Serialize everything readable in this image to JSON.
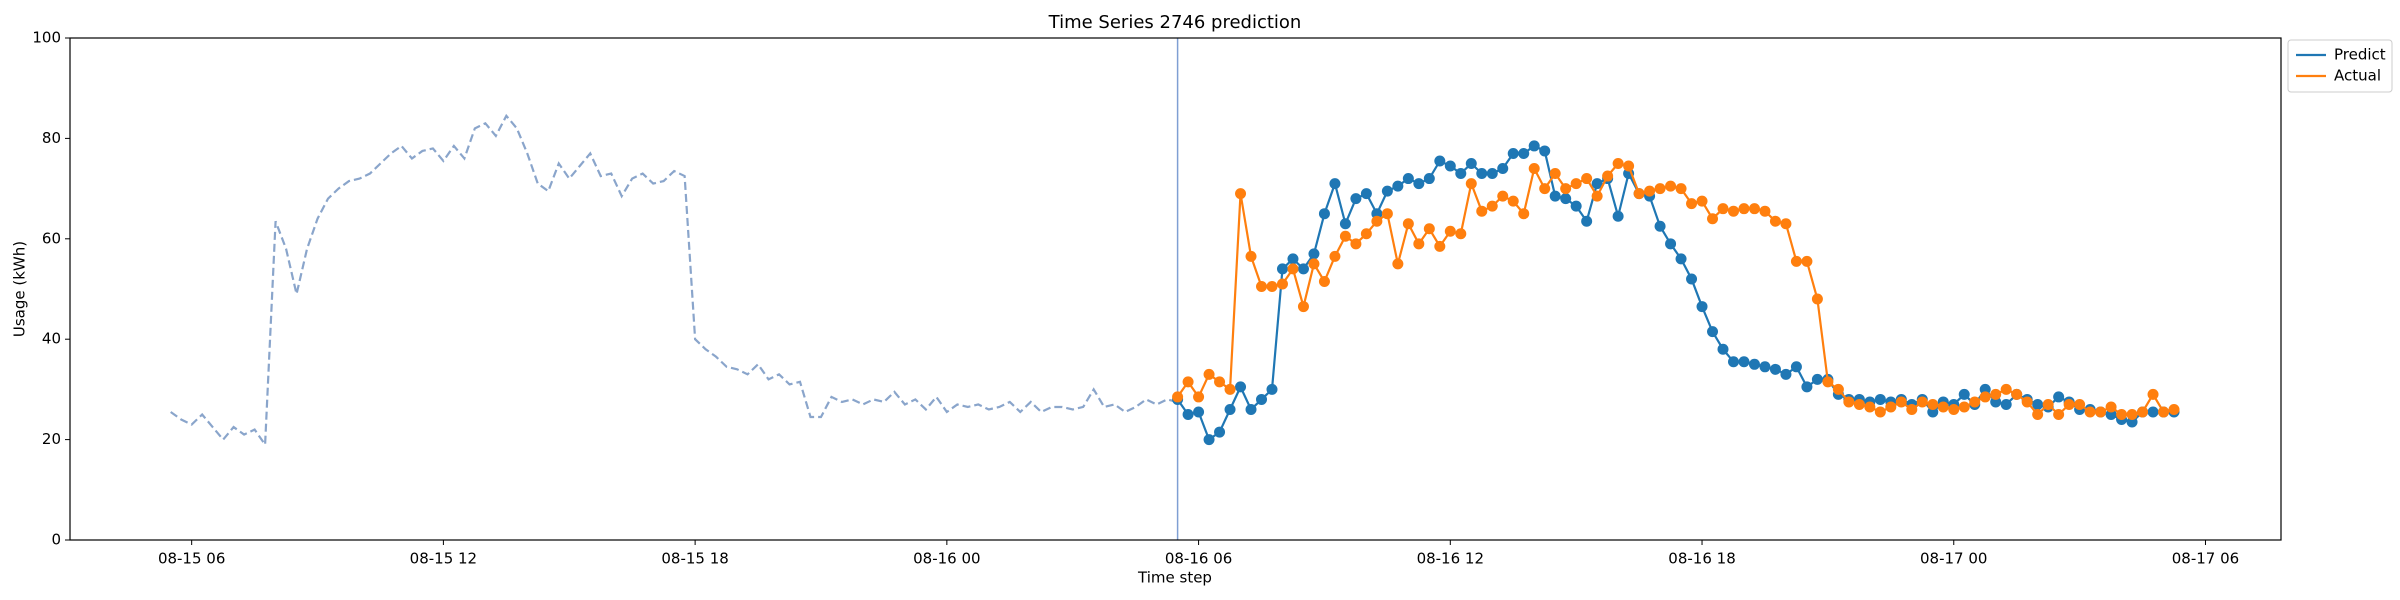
{
  "chart_data": {
    "type": "line",
    "title": "Time Series 2746 prediction",
    "x_label": "Time step",
    "y_label": "Usage (kWh)",
    "xlim": [
      3.1,
      55.8
    ],
    "ylim": [
      0,
      100
    ],
    "xticks": [
      {
        "value": 6,
        "label": "08-15 06"
      },
      {
        "value": 12,
        "label": "08-15 12"
      },
      {
        "value": 18,
        "label": "08-15 18"
      },
      {
        "value": 24,
        "label": "08-16 00"
      },
      {
        "value": 30,
        "label": "08-16 06"
      },
      {
        "value": 36,
        "label": "08-16 12"
      },
      {
        "value": 42,
        "label": "08-16 18"
      },
      {
        "value": 48,
        "label": "08-17 00"
      },
      {
        "value": 54,
        "label": "08-17 06"
      }
    ],
    "yticks": [
      0,
      20,
      40,
      60,
      80,
      100
    ],
    "vline": 29.5,
    "vline_color": "#7f9fd3",
    "legend": "outside upper right",
    "series": [
      {
        "color": "#8aa5cb",
        "linestyle": "dashed",
        "x": [
          5.5,
          5.75,
          6,
          6.25,
          6.5,
          6.75,
          7,
          7.25,
          7.5,
          7.75,
          8,
          8.25,
          8.5,
          8.75,
          9,
          9.25,
          9.5,
          9.75,
          10,
          10.25,
          10.5,
          10.75,
          11,
          11.25,
          11.5,
          11.75,
          12,
          12.25,
          12.5,
          12.75,
          13,
          13.25,
          13.5,
          13.75,
          14,
          14.25,
          14.5,
          14.75,
          15,
          15.25,
          15.5,
          15.75,
          16,
          16.25,
          16.5,
          16.75,
          17,
          17.25,
          17.5,
          17.75,
          18,
          18.25,
          18.5,
          18.75,
          19,
          19.25,
          19.5,
          19.75,
          20,
          20.25,
          20.5,
          20.75,
          21,
          21.25,
          21.5,
          21.75,
          22,
          22.25,
          22.5,
          22.75,
          23,
          23.25,
          23.5,
          23.75,
          24,
          24.25,
          24.5,
          24.75,
          25,
          25.25,
          25.5,
          25.75,
          26,
          26.25,
          26.5,
          26.75,
          27,
          27.25,
          27.5,
          27.75,
          28,
          28.25,
          28.5,
          28.75,
          29,
          29.25,
          29.5
        ],
        "values": [
          25.5,
          24,
          23,
          25,
          22.5,
          20,
          22.5,
          21,
          22,
          19,
          63.5,
          58,
          49,
          58,
          64,
          68,
          70,
          71.5,
          72,
          73,
          75,
          77,
          78.5,
          76,
          77.5,
          78,
          75.5,
          78.5,
          76,
          82,
          83,
          80.5,
          84.5,
          82,
          77,
          71,
          69.5,
          75,
          72,
          74.5,
          77,
          72.5,
          73,
          68.5,
          72,
          73,
          71,
          71.5,
          73.5,
          72.5,
          40,
          38,
          36.5,
          34.5,
          34,
          33,
          35,
          32,
          33,
          31,
          31.5,
          24.5,
          24.5,
          28.5,
          27.5,
          28,
          27,
          28,
          27.5,
          29.5,
          27,
          28,
          26,
          28.5,
          25.5,
          27,
          26.5,
          27,
          26,
          26.5,
          27.5,
          25.5,
          27.5,
          25.5,
          26.5,
          26.5,
          26,
          26.5,
          30,
          26.5,
          27,
          25.5,
          26.5,
          28,
          27,
          28,
          27.5
        ]
      },
      {
        "name": "Predict",
        "color": "#1f77b4",
        "linestyle": "solid",
        "marker": "o",
        "x": [
          29.5,
          29.75,
          30,
          30.25,
          30.5,
          30.75,
          31,
          31.25,
          31.5,
          31.75,
          32,
          32.25,
          32.5,
          32.75,
          33,
          33.25,
          33.5,
          33.75,
          34,
          34.25,
          34.5,
          34.75,
          35,
          35.25,
          35.5,
          35.75,
          36,
          36.25,
          36.5,
          36.75,
          37,
          37.25,
          37.5,
          37.75,
          38,
          38.25,
          38.5,
          38.75,
          39,
          39.25,
          39.5,
          39.75,
          40,
          40.25,
          40.5,
          40.75,
          41,
          41.25,
          41.5,
          41.75,
          42,
          42.25,
          42.5,
          42.75,
          43,
          43.25,
          43.5,
          43.75,
          44,
          44.25,
          44.5,
          44.75,
          45,
          45.25,
          45.5,
          45.75,
          46,
          46.25,
          46.5,
          46.75,
          47,
          47.25,
          47.5,
          47.75,
          48,
          48.25,
          48.5,
          48.75,
          49,
          49.25,
          49.5,
          49.75,
          50,
          50.25,
          50.5,
          50.75,
          51,
          51.25,
          51.5,
          51.75,
          52,
          52.25,
          52.5,
          52.75,
          53,
          53.25
        ],
        "values": [
          28,
          25,
          25.5,
          20,
          21.5,
          26,
          30.5,
          26,
          28,
          30,
          54,
          56,
          54,
          57,
          65,
          71,
          63,
          68,
          69,
          65,
          69.5,
          70.5,
          72,
          71,
          72,
          75.5,
          74.5,
          73,
          75,
          73,
          73,
          74,
          77,
          77,
          78.5,
          77.5,
          68.5,
          68,
          66.5,
          63.5,
          71,
          72,
          64.5,
          73,
          69,
          68.5,
          62.5,
          59,
          56,
          52,
          46.5,
          41.5,
          38,
          35.5,
          35.5,
          35,
          34.5,
          34,
          33,
          34.5,
          30.5,
          32,
          32,
          29,
          28,
          28,
          27.5,
          28,
          27.5,
          28,
          27,
          28,
          25.5,
          27.5,
          27,
          29,
          27,
          30,
          27.5,
          27,
          29,
          28,
          27,
          26.5,
          28.5,
          27.5,
          26,
          26,
          25.5,
          25,
          24,
          23.5,
          25.5,
          25.5,
          25.5,
          25.5
        ]
      },
      {
        "name": "Actual",
        "color": "#ff7f0e",
        "linestyle": "solid",
        "marker": "o",
        "x": [
          29.5,
          29.75,
          30,
          30.25,
          30.5,
          30.75,
          31,
          31.25,
          31.5,
          31.75,
          32,
          32.25,
          32.5,
          32.75,
          33,
          33.25,
          33.5,
          33.75,
          34,
          34.25,
          34.5,
          34.75,
          35,
          35.25,
          35.5,
          35.75,
          36,
          36.25,
          36.5,
          36.75,
          37,
          37.25,
          37.5,
          37.75,
          38,
          38.25,
          38.5,
          38.75,
          39,
          39.25,
          39.5,
          39.75,
          40,
          40.25,
          40.5,
          40.75,
          41,
          41.25,
          41.5,
          41.75,
          42,
          42.25,
          42.5,
          42.75,
          43,
          43.25,
          43.5,
          43.75,
          44,
          44.25,
          44.5,
          44.75,
          45,
          45.25,
          45.5,
          45.75,
          46,
          46.25,
          46.5,
          46.75,
          47,
          47.25,
          47.5,
          47.75,
          48,
          48.25,
          48.5,
          48.75,
          49,
          49.25,
          49.5,
          49.75,
          50,
          50.25,
          50.5,
          50.75,
          51,
          51.25,
          51.5,
          51.75,
          52,
          52.25,
          52.5,
          52.75,
          53,
          53.25
        ],
        "values": [
          28.5,
          31.5,
          28.5,
          33,
          31.5,
          30,
          69,
          56.5,
          50.5,
          50.5,
          51,
          54,
          46.5,
          55,
          51.5,
          56.5,
          60.5,
          59,
          61,
          63.5,
          65,
          55,
          63,
          59,
          62,
          58.5,
          61.5,
          61,
          71,
          65.5,
          66.5,
          68.5,
          67.5,
          65,
          74,
          70,
          73,
          70,
          71,
          72,
          68.5,
          72.5,
          75,
          74.5,
          69,
          69.5,
          70,
          70.5,
          70,
          67,
          67.5,
          64,
          66,
          65.5,
          66,
          66,
          65.5,
          63.5,
          63,
          55.5,
          55.5,
          48,
          31.5,
          30,
          27.5,
          27,
          26.5,
          25.5,
          26.5,
          27.5,
          26,
          27.5,
          27,
          26.5,
          26,
          26.5,
          27.5,
          28.5,
          29,
          30,
          29,
          27.5,
          25,
          27,
          25,
          27,
          27,
          25.5,
          25.5,
          26.5,
          25,
          25,
          25.5,
          29,
          25.5,
          26
        ]
      }
    ]
  }
}
